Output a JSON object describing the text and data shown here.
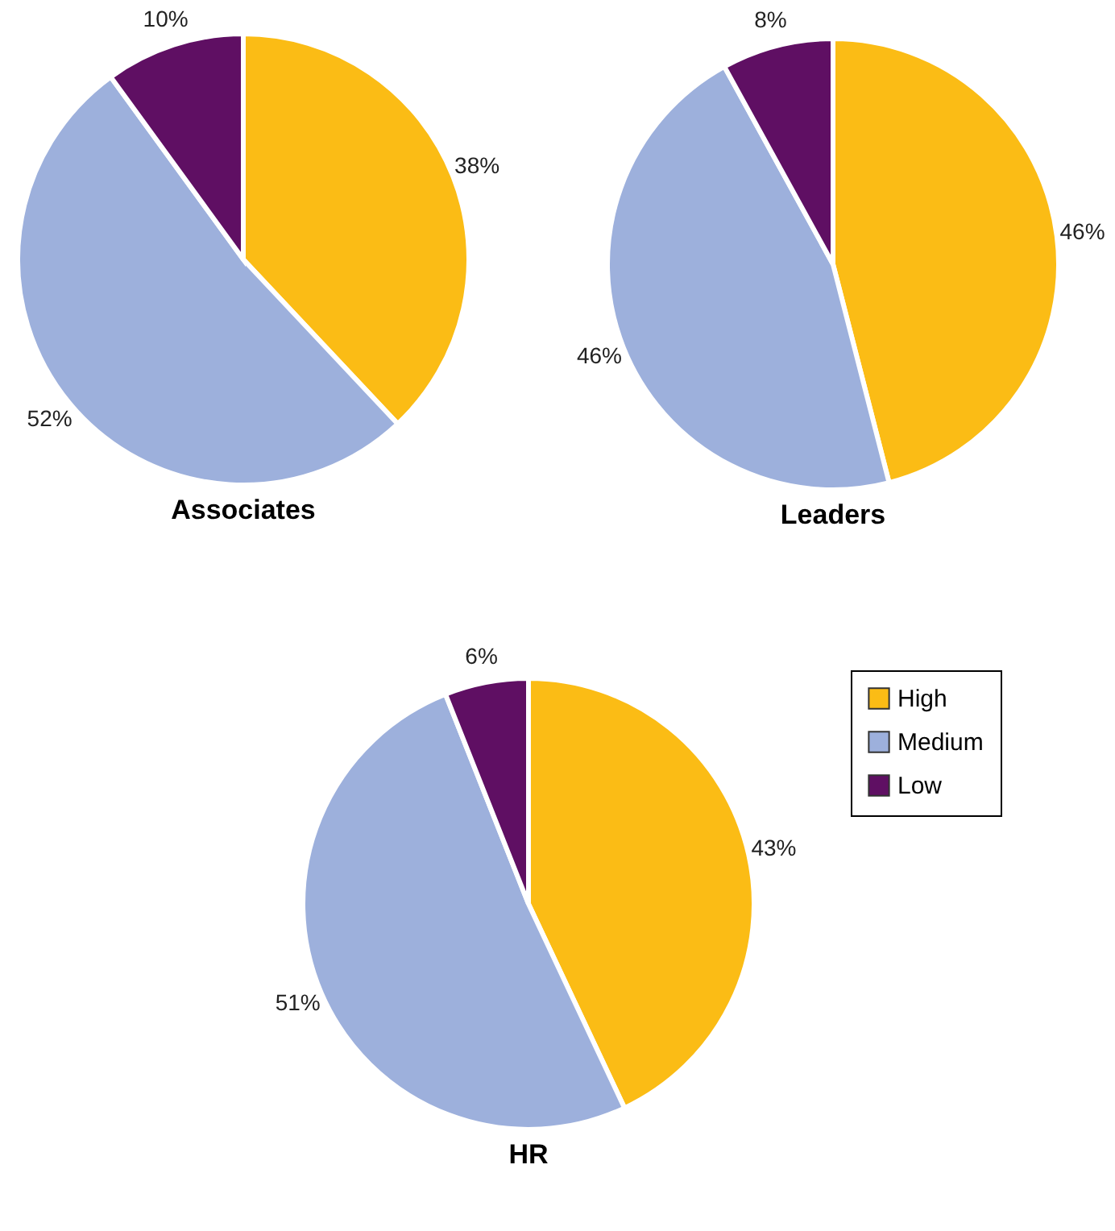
{
  "chart_data": [
    {
      "type": "pie",
      "title": "Associates",
      "categories": [
        null,
        null,
        null
      ],
      "values": [
        38,
        52,
        10
      ],
      "value_labels": [
        "38%",
        "52%",
        "10%"
      ],
      "colors": [
        "#fbbc15",
        "#9db0dc",
        "#5f0f63"
      ]
    },
    {
      "type": "pie",
      "title": "Leaders",
      "categories": [
        null,
        null,
        null
      ],
      "values": [
        46,
        46,
        8
      ],
      "value_labels": [
        "46%",
        "46%",
        "8%"
      ],
      "colors": [
        "#fbbc15",
        "#9db0dc",
        "#5f0f63"
      ]
    },
    {
      "type": "pie",
      "title": "HR",
      "categories": [
        "High",
        "Medium",
        "Low"
      ],
      "values": [
        43,
        51,
        6
      ],
      "value_labels": [
        "43%",
        "51%",
        "6%"
      ],
      "colors": [
        "#fbbc15",
        "#9db0dc",
        "#5f0f63"
      ],
      "legend": "right"
    }
  ]
}
